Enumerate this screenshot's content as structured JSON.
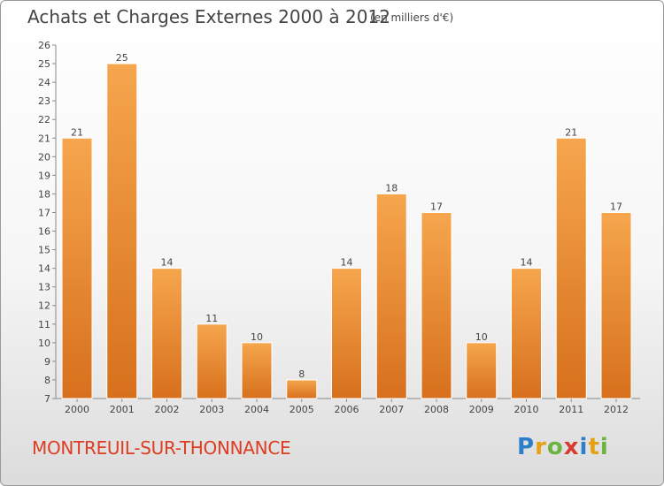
{
  "header": {
    "title": "Achats et Charges Externes 2000 à 2012",
    "unit": "(en milliers d'€)"
  },
  "footer": {
    "commune": "MONTREUIL-SUR-THONNANCE",
    "brand": "Proxiti"
  },
  "colors": {
    "bar_light": "#f6a64e",
    "bar_dark": "#d7701c",
    "commune_text": "#dd3d21"
  },
  "chart_data": {
    "type": "bar",
    "title": "Achats et Charges Externes 2000 à 2012",
    "subtitle": "(en milliers d'€)",
    "categories": [
      "2000",
      "2001",
      "2002",
      "2003",
      "2004",
      "2005",
      "2006",
      "2007",
      "2008",
      "2009",
      "2010",
      "2011",
      "2012"
    ],
    "values": [
      21,
      25,
      14,
      11,
      10,
      8,
      14,
      18,
      17,
      10,
      14,
      21,
      17
    ],
    "ylim": [
      7,
      26
    ],
    "yticks": [
      7,
      8,
      9,
      10,
      11,
      12,
      13,
      14,
      15,
      16,
      17,
      18,
      19,
      20,
      21,
      22,
      23,
      24,
      25,
      26
    ],
    "grid": false,
    "data_labels": true
  }
}
